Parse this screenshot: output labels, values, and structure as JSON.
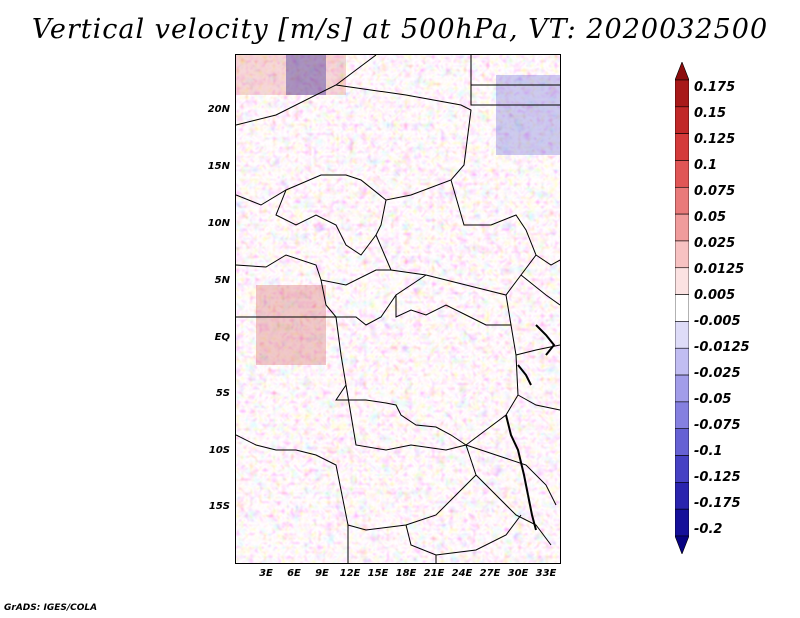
{
  "title": "Vertical velocity [m/s] at 500hPa, VT: 2020032500",
  "map": {
    "lat_labels": [
      "20N",
      "15N",
      "10N",
      "5N",
      "EQ",
      "5S",
      "10S",
      "15S"
    ],
    "lon_labels": [
      "3E",
      "6E",
      "9E",
      "12E",
      "15E",
      "18E",
      "21E",
      "24E",
      "27E",
      "30E",
      "33E"
    ]
  },
  "colorbar": {
    "labels": [
      "0.175",
      "0.15",
      "0.125",
      "0.1",
      "0.075",
      "0.05",
      "0.025",
      "0.0125",
      "0.005",
      "-0.005",
      "-0.0125",
      "-0.025",
      "-0.05",
      "-0.075",
      "-0.1",
      "-0.125",
      "-0.175",
      "-0.2"
    ],
    "colors": [
      "#8c0d0d",
      "#a81919",
      "#c12828",
      "#d43a3a",
      "#e05656",
      "#e97a7a",
      "#f09c9c",
      "#f7c2c2",
      "#fbe2e2",
      "#ffffff",
      "#dedcf8",
      "#c1bdf2",
      "#a29de9",
      "#8580e0",
      "#6661d4",
      "#4641c4",
      "#2a24ae",
      "#15109a",
      "#080382"
    ]
  },
  "credit": "GrADS: IGES/COLA"
}
